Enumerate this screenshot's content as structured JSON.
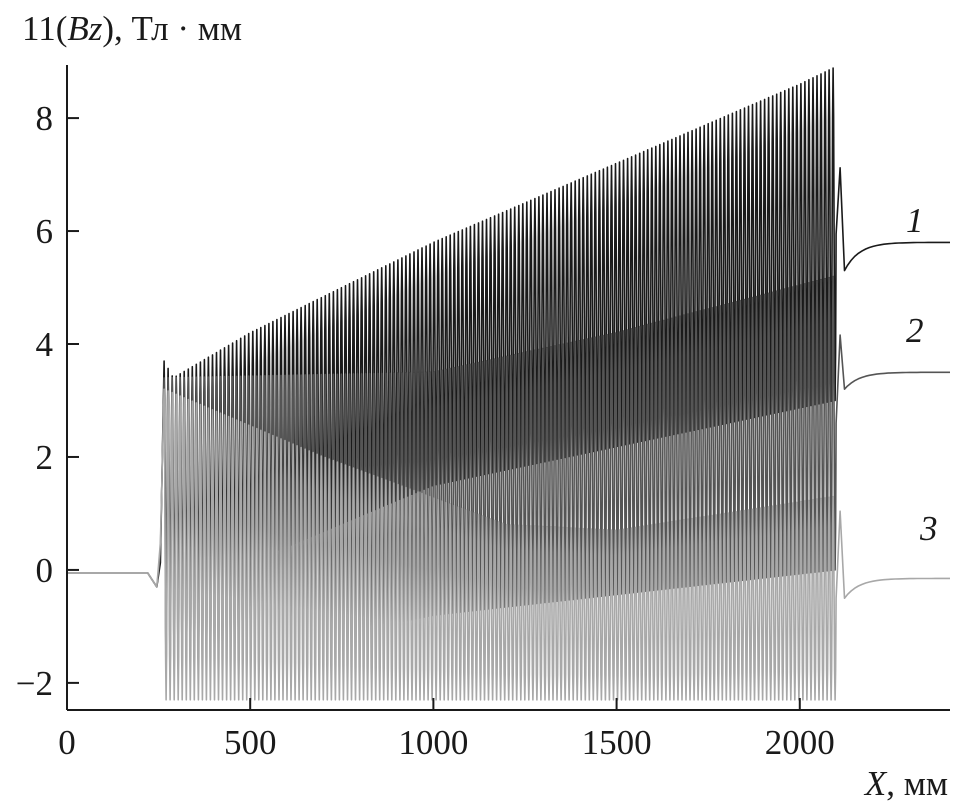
{
  "chart_data": {
    "type": "line",
    "ylabel_prefix": "11(",
    "ylabel_var": "Bz",
    "ylabel_suffix": "), Тл · мм",
    "xlabel_var": "X",
    "xlabel_suffix": ", мм",
    "xlim": [
      0,
      2410
    ],
    "ylim": [
      -2.48,
      8.94
    ],
    "xticks": [
      0,
      500,
      1000,
      1500,
      2000
    ],
    "yticks": [
      -2,
      0,
      2,
      4,
      6,
      8
    ],
    "ytick_labels": [
      "−2",
      "0",
      "2",
      "4",
      "6",
      "8"
    ],
    "grid": false,
    "oscillation_period_mm": 11,
    "undulator_start_mm": 265,
    "undulator_end_mm": 2100,
    "series": [
      {
        "name": "1",
        "color": "#1a1a1a",
        "before_value": -0.05,
        "upper_envelope": [
          [
            265,
            3.7
          ],
          [
            290,
            3.4
          ],
          [
            500,
            4.2
          ],
          [
            1000,
            5.8
          ],
          [
            1500,
            7.2
          ],
          [
            2000,
            8.6
          ],
          [
            2095,
            8.9
          ]
        ],
        "lower_envelope": [
          [
            265,
            -0.5
          ],
          [
            1000,
            1.5
          ],
          [
            2095,
            3.0
          ]
        ],
        "exit_dip": 5.3,
        "after_value": 5.8
      },
      {
        "name": "2",
        "color": "#555555",
        "before_value": -0.05,
        "upper_envelope": [
          [
            265,
            3.4
          ],
          [
            1000,
            3.5
          ],
          [
            1500,
            4.2
          ],
          [
            2095,
            5.2
          ]
        ],
        "lower_envelope": [
          [
            265,
            -1.8
          ],
          [
            1000,
            -0.8
          ],
          [
            2095,
            0.0
          ]
        ],
        "exit_dip": 3.2,
        "after_value": 3.5
      },
      {
        "name": "3",
        "color": "#a8a8a8",
        "before_value": -0.05,
        "upper_envelope": [
          [
            265,
            3.2
          ],
          [
            700,
            2.0
          ],
          [
            1200,
            0.8
          ],
          [
            1500,
            0.7
          ],
          [
            2095,
            1.3
          ]
        ],
        "lower_envelope": [
          [
            265,
            -2.3
          ],
          [
            2095,
            -2.3
          ]
        ],
        "exit_dip": -0.5,
        "after_value": -0.15
      }
    ]
  }
}
